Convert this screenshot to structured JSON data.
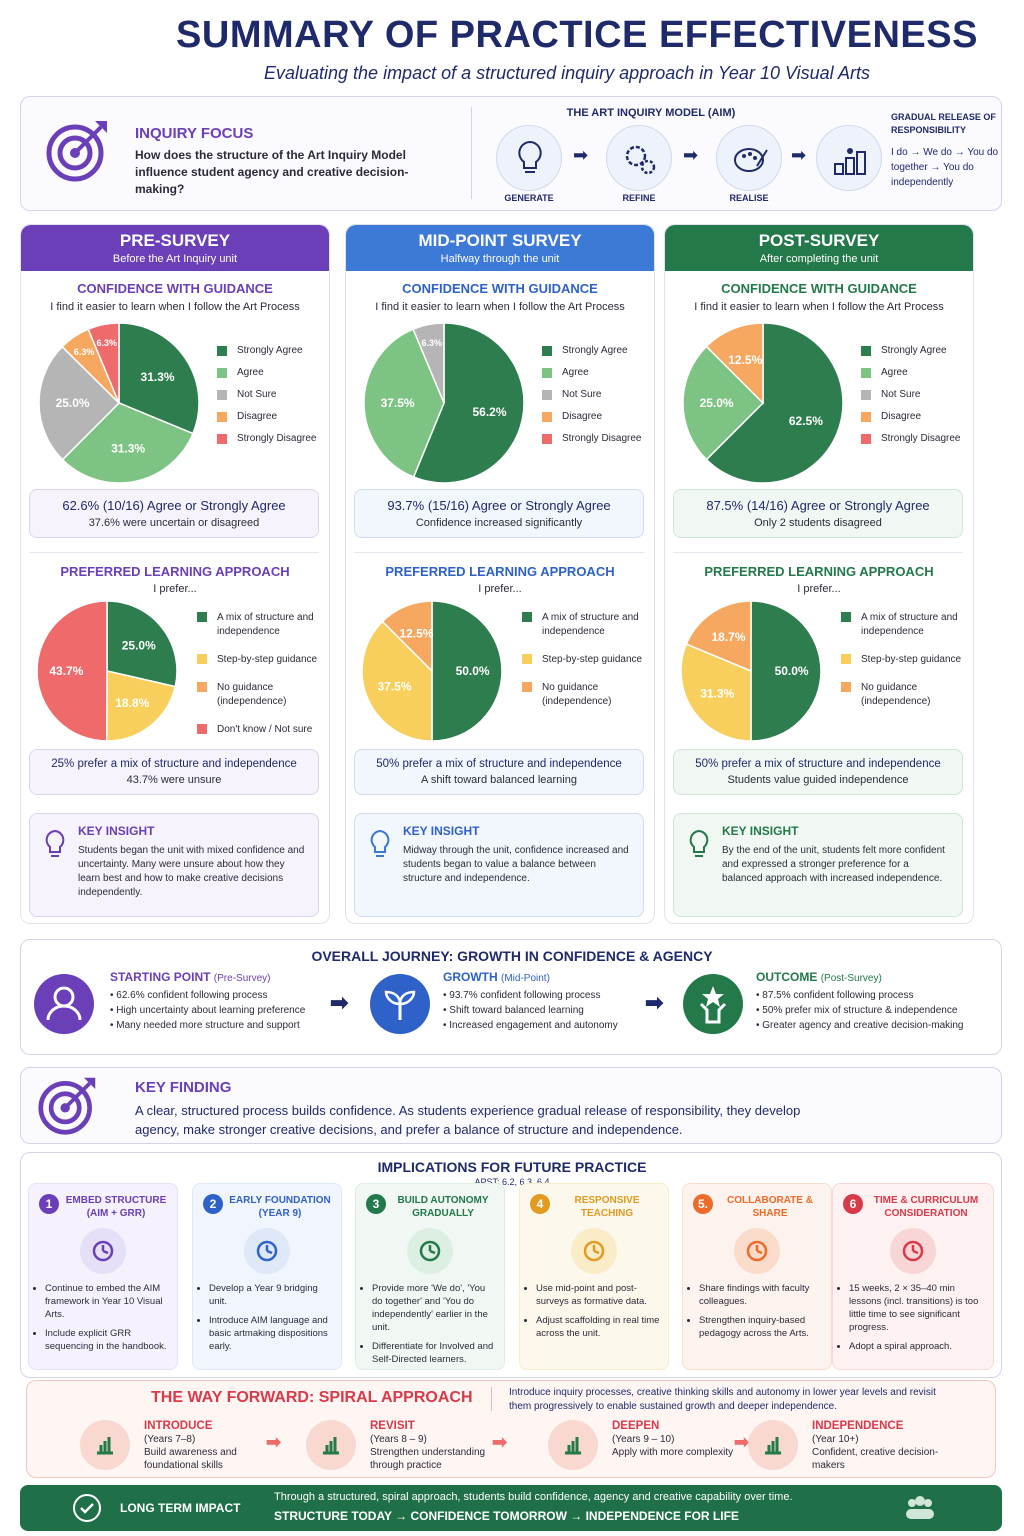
{
  "header": {
    "title": "SUMMARY OF PRACTICE EFFECTIVENESS",
    "subtitle": "Evaluating the impact of a structured inquiry approach in Year 10 Visual Arts"
  },
  "inquiry": {
    "label": "INQUIRY FOCUS",
    "question": "How does the structure of the Art Inquiry Model influence student agency and creative decision-making?",
    "model_title": "THE ART INQUIRY MODEL (AIM)",
    "steps": [
      "GENERATE",
      "REFINE",
      "REALISE"
    ],
    "grr_title": "GRADUAL RELEASE OF RESPONSIBILITY",
    "grr_text": "I do → We do → You do together → You do independently"
  },
  "columns": [
    {
      "title": "PRE-SURVEY",
      "subtitle": "Before the Art Inquiry unit",
      "conf_title": "CONFIDENCE WITH GUIDANCE",
      "conf_sub": "I find it easier to learn when I follow the Art Process",
      "conf_summary_big": "62.6% (10/16) Agree or Strongly Agree",
      "conf_summary": "37.6% were uncertain or disagreed",
      "pref_title": "PREFERRED LEARNING APPROACH",
      "pref_sub": "I prefer...",
      "pref_summary_big": "25% prefer a mix of structure and independence",
      "pref_summary": "43.7% were unsure",
      "insight_title": "KEY INSIGHT",
      "insight": "Students began the unit with mixed confidence and uncertainty. Many were unsure about how they learn best and how to make creative decisions independently."
    },
    {
      "title": "MID-POINT SURVEY",
      "subtitle": "Halfway through the unit",
      "conf_title": "CONFIDENCE WITH GUIDANCE",
      "conf_sub": "I find it easier to learn when I follow the Art Process",
      "conf_summary_big": "93.7% (15/16) Agree or Strongly Agree",
      "conf_summary": "Confidence increased significantly",
      "pref_title": "PREFERRED LEARNING APPROACH",
      "pref_sub": "I prefer...",
      "pref_summary_big": "50% prefer a mix of structure and independence",
      "pref_summary": "A shift toward balanced learning",
      "insight_title": "KEY INSIGHT",
      "insight": "Midway through the unit, confidence increased and students began to value a balance between structure and independence."
    },
    {
      "title": "POST-SURVEY",
      "subtitle": "After completing the unit",
      "conf_title": "CONFIDENCE WITH GUIDANCE",
      "conf_sub": "I find it easier to learn when I follow the Art Process",
      "conf_summary_big": "87.5% (14/16) Agree or Strongly Agree",
      "conf_summary": "Only 2 students disagreed",
      "pref_title": "PREFERRED LEARNING APPROACH",
      "pref_sub": "I prefer...",
      "pref_summary_big": "50% prefer a mix of structure and independence",
      "pref_summary": "Students value guided independence",
      "insight_title": "KEY INSIGHT",
      "insight": "By the end of the unit, students felt more confident and expressed a stronger preference for a balanced approach with increased independence."
    }
  ],
  "chart_data": [
    {
      "type": "pie",
      "id": "pre-confidence",
      "categories": [
        "Strongly Agree",
        "Agree",
        "Not Sure",
        "Disagree",
        "Strongly Disagree"
      ],
      "values": [
        31.3,
        31.3,
        25.0,
        6.3,
        6.3
      ],
      "colors": [
        "#2e7d4f",
        "#7dc383",
        "#b5b5b5",
        "#f6a860",
        "#ef6b6b"
      ]
    },
    {
      "type": "pie",
      "id": "mid-confidence",
      "categories": [
        "Strongly Agree",
        "Agree",
        "Not Sure",
        "Disagree",
        "Strongly Disagree"
      ],
      "values": [
        56.2,
        37.5,
        6.3,
        0,
        0
      ],
      "colors": [
        "#2e7d4f",
        "#7dc383",
        "#b5b5b5",
        "#f6a860",
        "#ef6b6b"
      ]
    },
    {
      "type": "pie",
      "id": "post-confidence",
      "categories": [
        "Strongly Agree",
        "Agree",
        "Not Sure",
        "Disagree",
        "Strongly Disagree"
      ],
      "values": [
        62.5,
        25.0,
        0,
        12.5,
        0
      ],
      "colors": [
        "#2e7d4f",
        "#7dc383",
        "#b5b5b5",
        "#f6a860",
        "#ef6b6b"
      ]
    },
    {
      "type": "pie",
      "id": "pre-preference",
      "categories": [
        "A mix of structure and independence",
        "Step-by-step guidance",
        "No guidance (independence)",
        "Don't know / Not sure"
      ],
      "values": [
        25.0,
        18.8,
        0,
        43.7
      ],
      "colors": [
        "#2e7d4f",
        "#f8cf5c",
        "#f6a860",
        "#ef6b6b"
      ]
    },
    {
      "type": "pie",
      "id": "mid-preference",
      "categories": [
        "A mix of structure and independence",
        "Step-by-step guidance",
        "No guidance (independence)"
      ],
      "values": [
        50.0,
        37.5,
        12.5
      ],
      "colors": [
        "#2e7d4f",
        "#f8cf5c",
        "#f6a860"
      ]
    },
    {
      "type": "pie",
      "id": "post-preference",
      "categories": [
        "A mix of structure and independence",
        "Step-by-step guidance",
        "No guidance (independence)"
      ],
      "values": [
        50.0,
        31.3,
        18.7
      ],
      "colors": [
        "#2e7d4f",
        "#f8cf5c",
        "#f6a860"
      ]
    }
  ],
  "journey": {
    "title": "OVERALL JOURNEY: GROWTH IN CONFIDENCE & AGENCY",
    "items": [
      {
        "title": "STARTING POINT",
        "tag": "(Pre-Survey)",
        "points": [
          "62.6% confident following process",
          "High uncertainty about learning preference",
          "Many needed more structure and support"
        ]
      },
      {
        "title": "GROWTH",
        "tag": "(Mid-Point)",
        "points": [
          "93.7% confident following process",
          "Shift toward balanced learning",
          "Increased engagement and autonomy"
        ]
      },
      {
        "title": "OUTCOME",
        "tag": "(Post-Survey)",
        "points": [
          "87.5% confident following process",
          "50% prefer mix of structure & independence",
          "Greater agency and creative decision-making"
        ]
      }
    ]
  },
  "finding": {
    "title": "KEY FINDING",
    "text": "A clear, structured process builds confidence. As students experience gradual release of responsibility, they develop agency, make stronger creative decisions, and prefer a balance of structure and independence."
  },
  "implications": {
    "title": "IMPLICATIONS FOR FUTURE PRACTICE",
    "apst": "APST: 6.2, 6.3, 6.4",
    "items": [
      {
        "num": "1",
        "title": "EMBED STRUCTURE (AIM + GRR)",
        "points": [
          "Continue to embed the AIM framework in Year 10 Visual Arts.",
          "Include explicit GRR sequencing in the handbook."
        ]
      },
      {
        "num": "2",
        "title": "EARLY FOUNDATION (YEAR 9)",
        "points": [
          "Develop a Year 9 bridging unit.",
          "Introduce AIM language and basic artmaking dispositions early."
        ]
      },
      {
        "num": "3",
        "title": "BUILD AUTONOMY GRADUALLY",
        "points": [
          "Provide more 'We do', 'You do together' and 'You do independently' earlier in the unit.",
          "Differentiate for Involved and Self-Directed learners."
        ]
      },
      {
        "num": "4",
        "title": "RESPONSIVE TEACHING",
        "points": [
          "Use mid-point and post-surveys as formative data.",
          "Adjust scaffolding in real time across the unit."
        ]
      },
      {
        "num": "5.",
        "title": "COLLABORATE & SHARE",
        "points": [
          "Share findings with faculty colleagues.",
          "Strengthen inquiry-based pedagogy across the Arts."
        ]
      },
      {
        "num": "6",
        "title": "TIME & CURRICULUM CONSIDERATION",
        "points": [
          "15 weeks, 2 × 35–40 min lessons (incl. transitions) is too little time to see significant progress.",
          "Adopt a spiral approach."
        ]
      }
    ]
  },
  "forward": {
    "title": "THE WAY FORWARD: SPIRAL APPROACH",
    "text": "Introduce inquiry processes, creative thinking skills and autonomy in lower year levels and revisit them progressively to enable sustained growth and deeper independence.",
    "items": [
      {
        "title": "INTRODUCE",
        "years": "(Years 7–8)",
        "text": "Build awareness and foundational skills"
      },
      {
        "title": "REVISIT",
        "years": "(Years  8 – 9)",
        "text": "Strengthen understanding through practice"
      },
      {
        "title": "DEEPEN",
        "years": "(Years 9 – 10)",
        "text": "Apply with more complexity"
      },
      {
        "title": "INDEPENDENCE",
        "years": "(Year 10+)",
        "text": "Confident, creative decision-makers"
      }
    ]
  },
  "impact": {
    "label": "LONG TERM IMPACT",
    "text": "Through a structured, spiral approach, students build confidence, agency and creative capability over time.",
    "motto": "STRUCTURE TODAY → CONFIDENCE TOMORROW → INDEPENDENCE FOR LIFE"
  }
}
